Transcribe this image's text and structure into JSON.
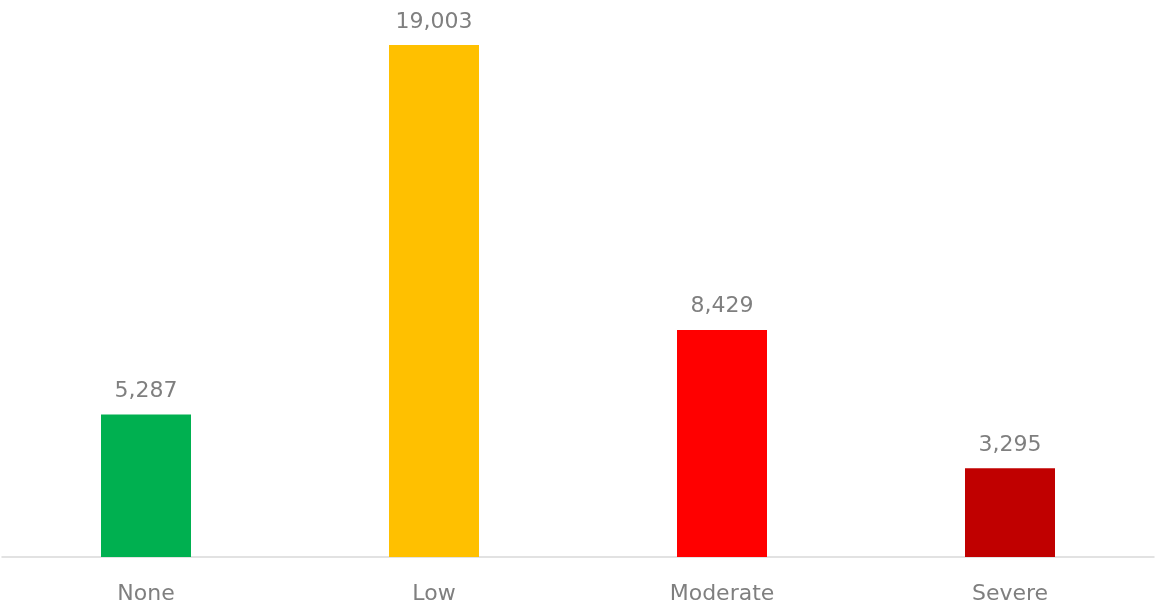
{
  "chart_data": {
    "type": "bar",
    "categories": [
      "None",
      "Low",
      "Moderate",
      "Severe"
    ],
    "values": [
      5287,
      19003,
      8429,
      3295
    ],
    "value_labels": [
      "5,287",
      "19,003",
      "8,429",
      "3,295"
    ],
    "colors": [
      "#00b050",
      "#ffc000",
      "#ff0000",
      "#c00000"
    ]
  }
}
